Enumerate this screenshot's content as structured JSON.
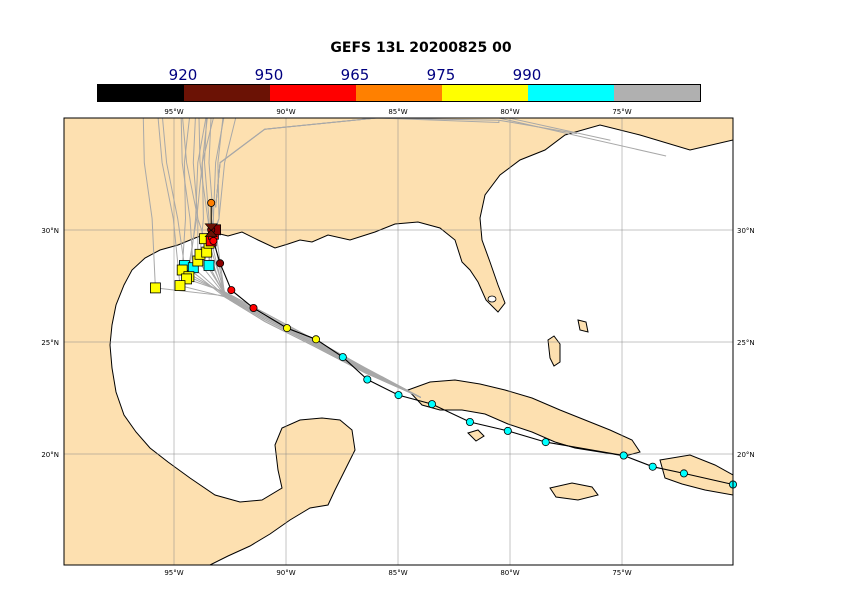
{
  "title": "GEFS 13L 20200825 00",
  "colorbar": {
    "labels": [
      "920",
      "950",
      "965",
      "975",
      "990"
    ],
    "colors": [
      "#000000",
      "#6b1205",
      "#ff0000",
      "#ff8000",
      "#ffff00",
      "#00ffff",
      "#b0b0b0"
    ]
  },
  "map": {
    "lon_range": [
      -100,
      -70
    ],
    "lat_range": [
      15,
      35
    ],
    "lon_ticks": [
      "95°W",
      "90°W",
      "85°W",
      "80°W",
      "75°W"
    ],
    "lat_ticks": [
      "30°N",
      "25°N",
      "20°N"
    ],
    "land_color": "#fde0b0",
    "ocean_color": "#ffffff",
    "ensemble_color": "#a8a8a8"
  },
  "chart_data": {
    "type": "scatter",
    "observed_track": [
      {
        "lon": -70.0,
        "lat": 18.6,
        "color": "cyan"
      },
      {
        "lon": -72.2,
        "lat": 19.1,
        "color": "cyan"
      },
      {
        "lon": -73.6,
        "lat": 19.4,
        "color": "cyan"
      },
      {
        "lon": -74.9,
        "lat": 19.9,
        "color": "cyan"
      },
      {
        "lon": -78.4,
        "lat": 20.5,
        "color": "cyan"
      },
      {
        "lon": -80.1,
        "lat": 21.0,
        "color": "cyan"
      },
      {
        "lon": -81.8,
        "lat": 21.4,
        "color": "cyan"
      },
      {
        "lon": -83.5,
        "lat": 22.2,
        "color": "cyan"
      },
      {
        "lon": -85.0,
        "lat": 22.6,
        "color": "cyan"
      },
      {
        "lon": -86.4,
        "lat": 23.3,
        "color": "cyan"
      },
      {
        "lon": -87.5,
        "lat": 24.3,
        "color": "cyan"
      },
      {
        "lon": -88.7,
        "lat": 25.1,
        "color": "yellow"
      },
      {
        "lon": -90.0,
        "lat": 25.6,
        "color": "yellow"
      },
      {
        "lon": -91.5,
        "lat": 26.5,
        "color": "red"
      },
      {
        "lon": -92.5,
        "lat": 27.3,
        "color": "red"
      },
      {
        "lon": -93.0,
        "lat": 28.5,
        "color": "darkred"
      },
      {
        "lon": -93.3,
        "lat": 29.5,
        "color": "red"
      },
      {
        "lon": -93.4,
        "lat": 30.0,
        "color": "darkred"
      },
      {
        "lon": -93.4,
        "lat": 31.2,
        "color": "orange"
      }
    ],
    "ensemble_endpoints": [
      {
        "lon": -94.6,
        "lat": 28.4,
        "color": "cyan"
      },
      {
        "lon": -94.2,
        "lat": 28.3,
        "color": "cyan"
      },
      {
        "lon": -93.5,
        "lat": 28.4,
        "color": "cyan"
      },
      {
        "lon": -94.7,
        "lat": 28.2,
        "color": "yellow"
      },
      {
        "lon": -94.4,
        "lat": 27.9,
        "color": "yellow"
      },
      {
        "lon": -94.5,
        "lat": 27.8,
        "color": "yellow"
      },
      {
        "lon": -94.8,
        "lat": 27.5,
        "color": "yellow"
      },
      {
        "lon": -95.9,
        "lat": 27.4,
        "color": "yellow"
      },
      {
        "lon": -94.0,
        "lat": 28.6,
        "color": "yellow"
      },
      {
        "lon": -93.9,
        "lat": 28.9,
        "color": "yellow"
      },
      {
        "lon": -93.6,
        "lat": 29.0,
        "color": "yellow"
      },
      {
        "lon": -93.5,
        "lat": 29.4,
        "color": "yellow"
      },
      {
        "lon": -93.7,
        "lat": 29.6,
        "color": "yellow"
      },
      {
        "lon": -93.4,
        "lat": 29.5,
        "color": "red"
      },
      {
        "lon": -93.3,
        "lat": 29.8,
        "color": "red"
      },
      {
        "lon": -93.2,
        "lat": 30.0,
        "color": "darkred"
      }
    ]
  }
}
